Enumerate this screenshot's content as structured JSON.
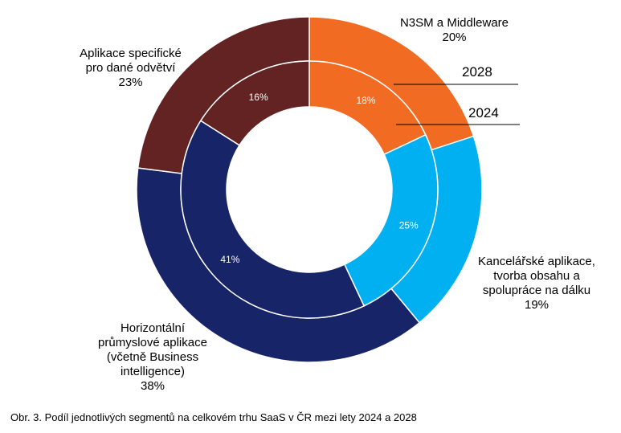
{
  "chart_data": {
    "type": "donut",
    "categories": [
      "N3SM a Middleware",
      "Kancelářské aplikace, tvorba obsahu a spolupráce na dálku",
      "Horizontální průmyslové aplikace (včetně Business intelligence)",
      "Aplikace specifické pro dané odvětví"
    ],
    "series": [
      {
        "name": "2028",
        "ring": "outer",
        "values": [
          20,
          19,
          38,
          23
        ]
      },
      {
        "name": "2024",
        "ring": "inner",
        "values": [
          18,
          25,
          41,
          16
        ]
      }
    ],
    "colors": [
      "#F26B22",
      "#00B0F0",
      "#172468",
      "#632322"
    ],
    "inner_label_color": "#ffffff"
  },
  "labels": {
    "n3sm": {
      "line1": "N3SM a Middleware",
      "value": "20%"
    },
    "office": {
      "line1": "Kancelářské aplikace,",
      "line2": "tvorba obsahu a",
      "line3": "spolupráce na dálku",
      "value": "19%"
    },
    "horizontal": {
      "line1": "Horizontální",
      "line2": "průmyslové aplikace",
      "line3": "(včetně Business",
      "line4": "intelligence)",
      "value": "38%"
    },
    "specific": {
      "line1": "Aplikace specifické",
      "line2": "pro dané odvětví",
      "value": "23%"
    }
  },
  "inner_labels": [
    "18%",
    "25%",
    "41%",
    "16%"
  ],
  "years": {
    "outer": "2028",
    "inner": "2024"
  },
  "caption": "Obr. 3. Podíl jednotlivých segmentů na celkovém trhu SaaS v ČR mezi lety 2024 a 2028"
}
